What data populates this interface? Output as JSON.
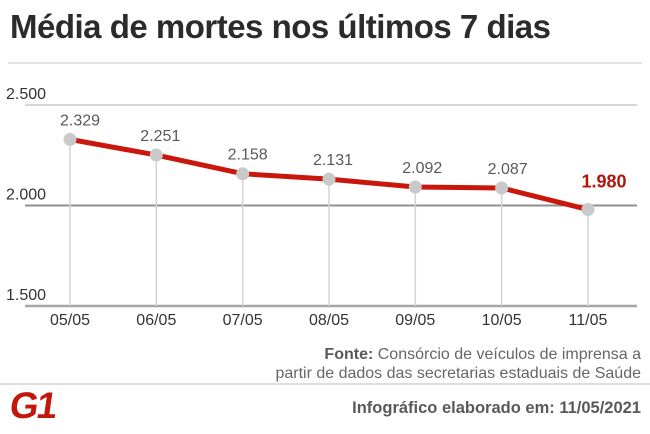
{
  "title": "Média de mortes nos últimos 7 dias",
  "chart_data": {
    "type": "line",
    "title": "Média de mortes nos últimos 7 dias",
    "x": [
      "05/05",
      "06/05",
      "07/05",
      "08/05",
      "09/05",
      "10/05",
      "11/05"
    ],
    "values": [
      2329,
      2251,
      2158,
      2131,
      2092,
      2087,
      1980
    ],
    "point_labels": [
      "2.329",
      "2.251",
      "2.158",
      "2.131",
      "2.092",
      "2.087",
      "1.980"
    ],
    "y_ticks": [
      {
        "label": "2.500",
        "value": 2500
      },
      {
        "label": "2.000",
        "value": 2000
      },
      {
        "label": "1.500",
        "value": 1500
      }
    ],
    "ylim": [
      1500,
      2500
    ],
    "grid": "horizontal-and-droplines",
    "legend": "none",
    "line_color": "#c9170d",
    "dot_color": "#c9c9c9",
    "point_label_color": "#595959",
    "last_point_label_color": "#b51408",
    "axis_label_color": "#333333"
  },
  "source": {
    "label": "Fonte:",
    "line1": "Consórcio de veículos de imprensa a",
    "line2": "partir de dados das secretarias estaduais de Saúde"
  },
  "footer": {
    "logo": "G1",
    "made_on": "Infográfico elaborado em: 11/05/2021"
  }
}
